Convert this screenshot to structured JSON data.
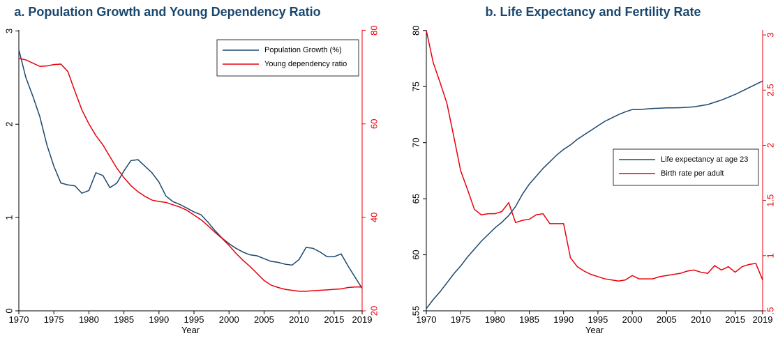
{
  "chart_data": [
    {
      "type": "line",
      "title": "a. Population Growth and Young Dependency Ratio",
      "x_label": "Year",
      "x": [
        1970,
        1971,
        1972,
        1973,
        1974,
        1975,
        1976,
        1977,
        1978,
        1979,
        1980,
        1981,
        1982,
        1983,
        1984,
        1985,
        1986,
        1987,
        1988,
        1989,
        1990,
        1991,
        1992,
        1993,
        1994,
        1995,
        1996,
        1997,
        1998,
        1999,
        2000,
        2001,
        2002,
        2003,
        2004,
        2005,
        2006,
        2007,
        2008,
        2009,
        2010,
        2011,
        2012,
        2013,
        2014,
        2015,
        2016,
        2017,
        2018,
        2019
      ],
      "xlim": [
        1970,
        2019
      ],
      "xticks": [
        1970,
        1975,
        1980,
        1985,
        1990,
        1995,
        2000,
        2005,
        2010,
        2015,
        2019
      ],
      "ylim": [
        0,
        3.01
      ],
      "yticks": [
        0,
        1,
        2,
        3
      ],
      "y2lim": [
        20,
        80.1
      ],
      "y2ticks": [
        20,
        40,
        60,
        80
      ],
      "y2color": "#e8000b",
      "legend": "upper right",
      "series": [
        {
          "name": "Population Growth (%)",
          "color": "#1a476f",
          "values": [
            2.8,
            2.5,
            2.3,
            2.08,
            1.78,
            1.55,
            1.37,
            1.35,
            1.34,
            1.26,
            1.29,
            1.48,
            1.45,
            1.32,
            1.37,
            1.5,
            1.61,
            1.62,
            1.55,
            1.48,
            1.38,
            1.23,
            1.17,
            1.14,
            1.1,
            1.06,
            1.03,
            0.95,
            0.86,
            0.78,
            0.72,
            0.67,
            0.63,
            0.6,
            0.59,
            0.56,
            0.53,
            0.52,
            0.5,
            0.49,
            0.55,
            0.68,
            0.67,
            0.63,
            0.58,
            0.58,
            0.61,
            0.48,
            0.36,
            0.24
          ]
        },
        {
          "name": "Young dependency ratio",
          "color": "#e8000b",
          "axis": "y2",
          "values": [
            74,
            73.7,
            73,
            72.3,
            72.4,
            72.7,
            72.8,
            71.2,
            67,
            63,
            60,
            57.5,
            55.5,
            53,
            50.5,
            48.5,
            46.8,
            45.5,
            44.5,
            43.7,
            43.4,
            43.2,
            42.7,
            42.2,
            41.5,
            40.5,
            39.5,
            38.2,
            36.8,
            35.5,
            34,
            32.3,
            30.8,
            29.5,
            28,
            26.5,
            25.5,
            25,
            24.6,
            24.4,
            24.2,
            24.2,
            24.3,
            24.4,
            24.5,
            24.6,
            24.7,
            25,
            25.1,
            25.1
          ]
        }
      ]
    },
    {
      "type": "line",
      "title": "b. Life Expectancy and Fertility Rate",
      "x_label": "Year",
      "x": [
        1970,
        1971,
        1972,
        1973,
        1974,
        1975,
        1976,
        1977,
        1978,
        1979,
        1980,
        1981,
        1982,
        1983,
        1984,
        1985,
        1986,
        1987,
        1988,
        1989,
        1990,
        1991,
        1992,
        1993,
        1994,
        1995,
        1996,
        1997,
        1998,
        1999,
        2000,
        2001,
        2002,
        2003,
        2004,
        2005,
        2006,
        2007,
        2008,
        2009,
        2010,
        2011,
        2012,
        2013,
        2014,
        2015,
        2016,
        2017,
        2018,
        2019
      ],
      "xlim": [
        1970,
        2019
      ],
      "xticks": [
        1970,
        1975,
        1980,
        1985,
        1990,
        1995,
        2000,
        2005,
        2010,
        2015,
        2019
      ],
      "ylim": [
        55,
        80.05
      ],
      "yticks": [
        55,
        60,
        65,
        70,
        75,
        80
      ],
      "y2lim": [
        0.5,
        3.045
      ],
      "y2ticks": [
        {
          "value": 0.5,
          "label": ".5"
        },
        1,
        1.5,
        2,
        2.5,
        3
      ],
      "y2color": "#e8000b",
      "legend": "center right",
      "series": [
        {
          "name": "Life expectancy at age 23",
          "color": "#1a476f",
          "values": [
            55.2,
            56,
            56.7,
            57.5,
            58.3,
            59,
            59.8,
            60.5,
            61.2,
            61.8,
            62.4,
            62.9,
            63.5,
            64.3,
            65.4,
            66.3,
            67,
            67.7,
            68.3,
            68.9,
            69.4,
            69.8,
            70.3,
            70.7,
            71.1,
            71.5,
            71.9,
            72.2,
            72.5,
            72.75,
            72.95,
            72.95,
            73,
            73.05,
            73.07,
            73.1,
            73.1,
            73.12,
            73.15,
            73.2,
            73.3,
            73.4,
            73.6,
            73.8,
            74.05,
            74.3,
            74.6,
            74.9,
            75.2,
            75.5
          ]
        },
        {
          "name": "Birth rate per adult",
          "color": "#e8000b",
          "axis": "y2",
          "values": [
            3.04,
            2.75,
            2.57,
            2.38,
            2.08,
            1.77,
            1.6,
            1.42,
            1.37,
            1.38,
            1.38,
            1.4,
            1.48,
            1.3,
            1.32,
            1.33,
            1.37,
            1.38,
            1.29,
            1.29,
            1.29,
            0.98,
            0.9,
            0.86,
            0.83,
            0.81,
            0.79,
            0.78,
            0.77,
            0.78,
            0.82,
            0.79,
            0.79,
            0.79,
            0.81,
            0.82,
            0.83,
            0.84,
            0.86,
            0.87,
            0.85,
            0.84,
            0.91,
            0.87,
            0.9,
            0.85,
            0.9,
            0.92,
            0.93,
            0.78
          ]
        }
      ]
    }
  ]
}
